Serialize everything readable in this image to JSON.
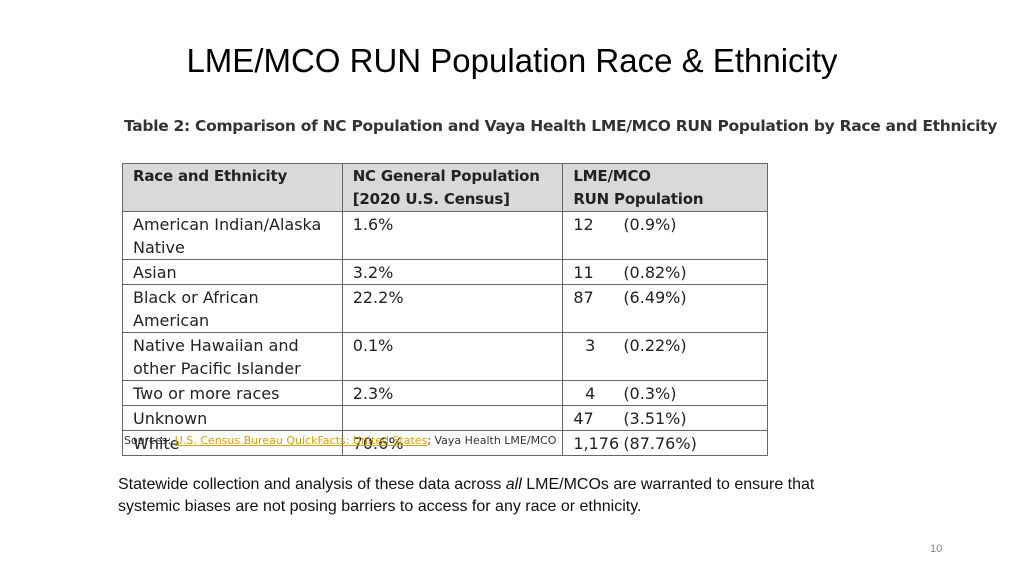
{
  "slide": {
    "title": "LME/MCO RUN Population Race & Ethnicity",
    "page_number": "10"
  },
  "table": {
    "caption": "Table 2:  Comparison of NC Population and Vaya Health LME/MCO RUN Population by Race and Ethnicity",
    "headers": {
      "race": "Race and Ethnicity",
      "nc_line1": "NC General Population",
      "nc_line2": "[2020 U.S. Census]",
      "run_line1": "LME/MCO",
      "run_line2": "RUN Population"
    },
    "rows": [
      {
        "race": "American Indian/Alaska Native",
        "nc": "1.6%",
        "run_count": "12",
        "run_pct": "(0.9%)"
      },
      {
        "race": "Asian",
        "nc": "3.2%",
        "run_count": "11",
        "run_pct": "(0.82%)"
      },
      {
        "race": "Black or African American",
        "nc": "22.2%",
        "run_count": "87",
        "run_pct": "(6.49%)"
      },
      {
        "race": "Native Hawaiian and other Pacific Islander",
        "nc": "0.1%",
        "run_count": "3",
        "run_pct": "(0.22%)"
      },
      {
        "race": "Two or more races",
        "nc": "2.3%",
        "run_count": "4",
        "run_pct": "(0.3%)"
      },
      {
        "race": "Unknown",
        "nc": "",
        "run_count": "47",
        "run_pct": "(3.51%)"
      },
      {
        "race": "White",
        "nc": "70.6%",
        "run_count": "1,176",
        "run_pct": "(87.76%)"
      }
    ],
    "sources": {
      "label": "Sources:",
      "link_text": "U.S. Census Bureau QuickFacts: United States",
      "rest": "; Vaya Health LME/MCO"
    }
  },
  "note": {
    "before": "Statewide collection and analysis of these data across ",
    "emphasis": "all",
    "after": " LME/MCOs are warranted to ensure that systemic biases are not posing barriers to access for any race or ethnicity."
  }
}
